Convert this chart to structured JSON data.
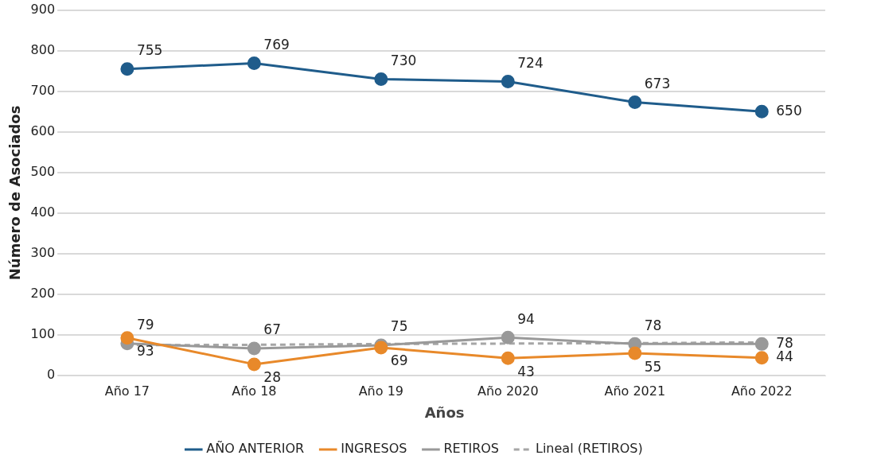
{
  "chart_data": {
    "type": "line",
    "xlabel": "Años",
    "ylabel": "Número de Asociados",
    "categories": [
      "Año 17",
      "Año 18",
      "Año 19",
      "Año 2020",
      "Año 2021",
      "Año 2022"
    ],
    "series": [
      {
        "name": "AÑO ANTERIOR",
        "color": "#1f5c8b",
        "values": [
          755,
          769,
          730,
          724,
          673,
          650
        ],
        "value_labels": [
          "755",
          "769",
          "730",
          "724",
          "673",
          "650"
        ],
        "marker": "circle"
      },
      {
        "name": "INGRESOS",
        "color": "#e8892a",
        "values": [
          93,
          28,
          69,
          43,
          55,
          44
        ],
        "value_labels": [
          "93",
          "28",
          "69",
          "43",
          "55",
          "44"
        ],
        "marker": "circle"
      },
      {
        "name": "RETIROS",
        "color": "#999999",
        "values": [
          79,
          67,
          75,
          94,
          78,
          78
        ],
        "value_labels": [
          "79",
          "67",
          "75",
          "94",
          "78",
          "78"
        ],
        "marker": "circle"
      },
      {
        "name": "Lineal (RETIROS)",
        "color": "#a6a6a6",
        "values": [
          75,
          76,
          78,
          79,
          80,
          82
        ],
        "marker": "none",
        "line_style": "dashed"
      }
    ],
    "ylim": [
      0,
      900
    ],
    "yticks": [
      0,
      100,
      200,
      300,
      400,
      500,
      600,
      700,
      800,
      900
    ],
    "grid": "y",
    "legend": "bottom"
  }
}
